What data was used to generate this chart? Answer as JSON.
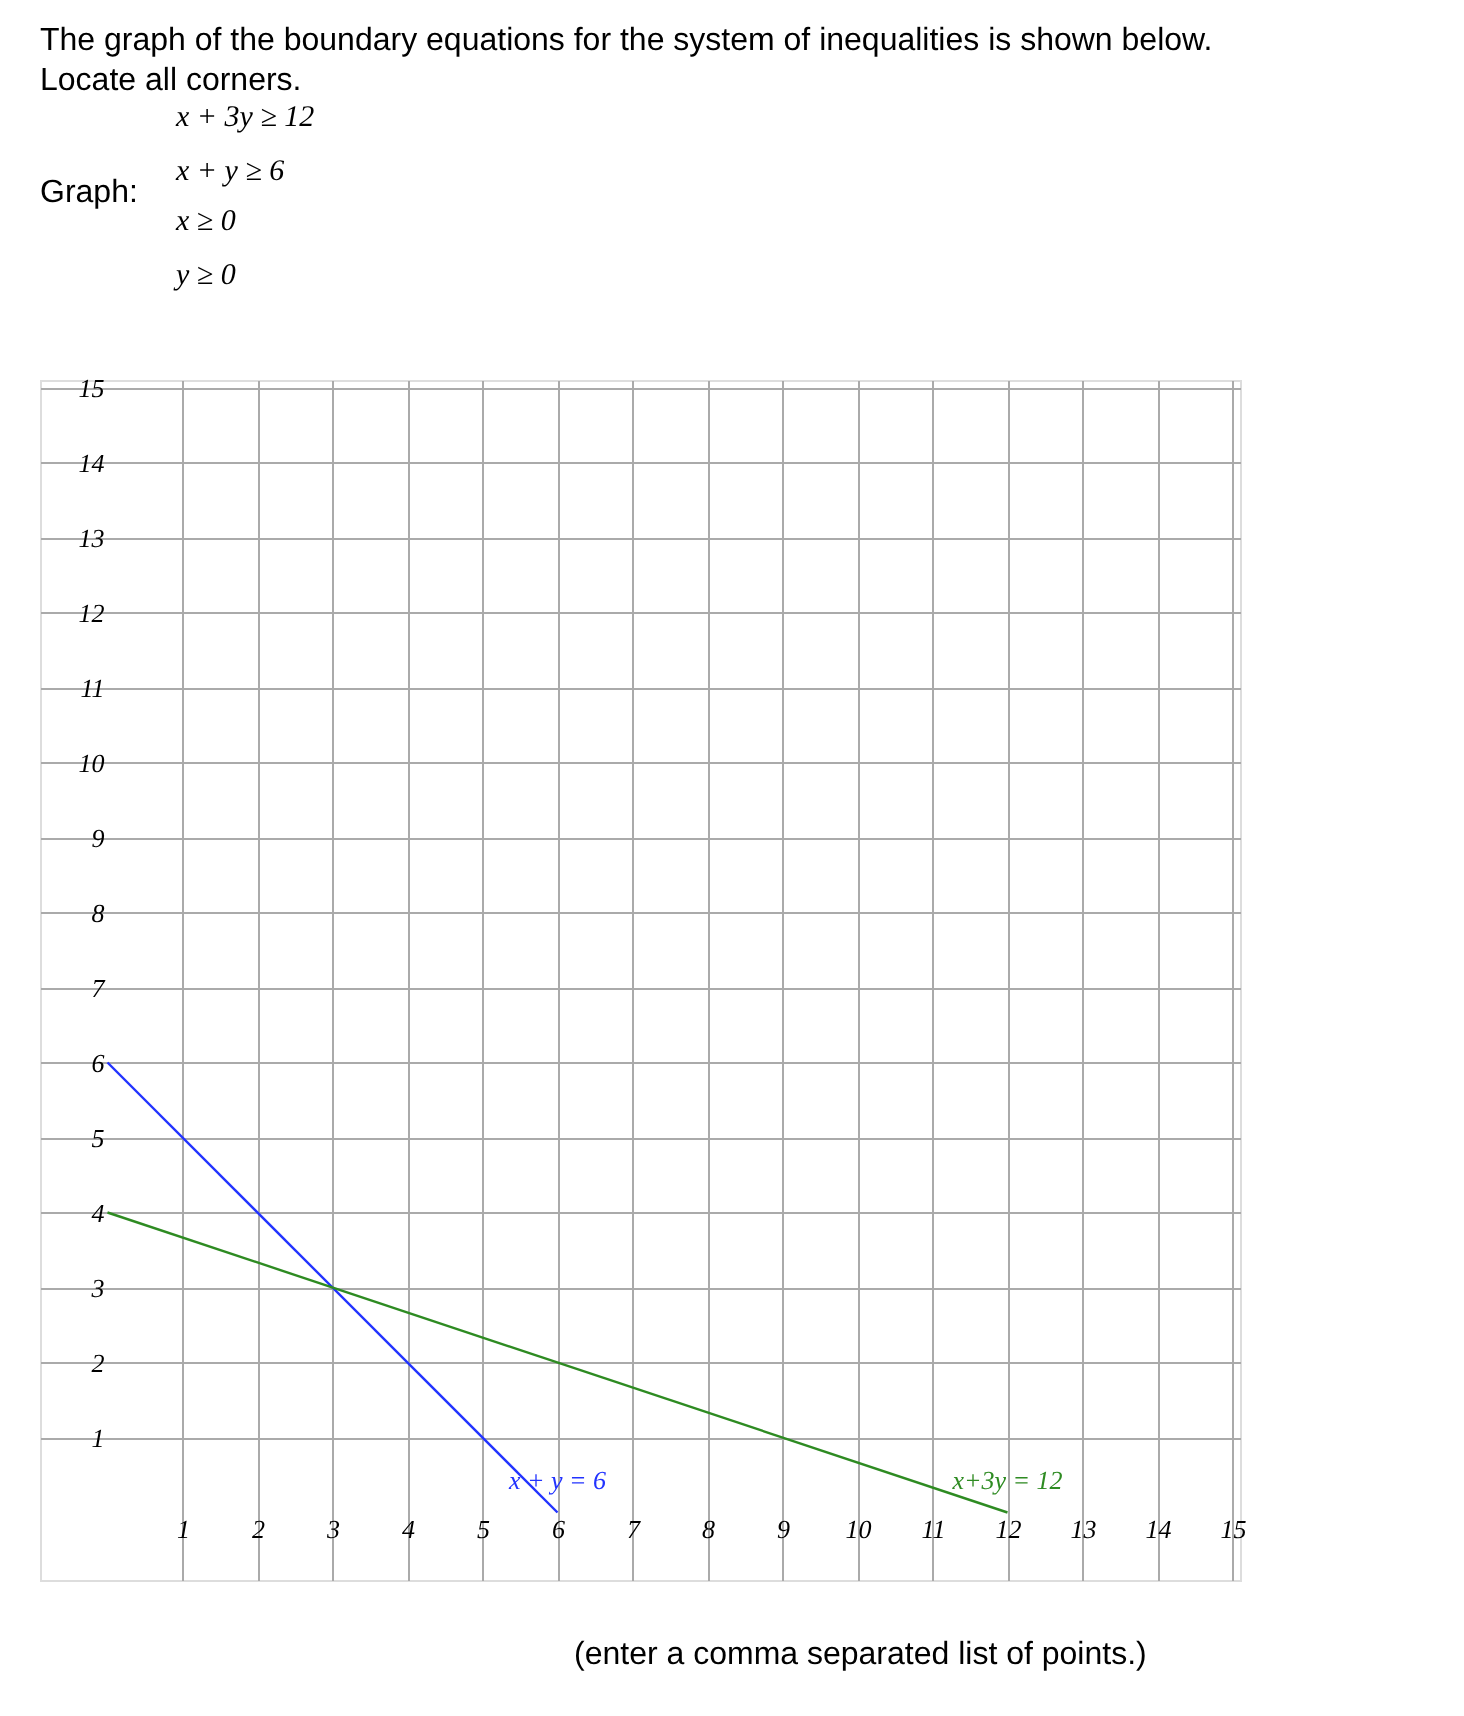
{
  "chart_data": {
    "type": "line",
    "title": "The graph of the boundary equations for the system of inequalities is shown below.",
    "subtitle": "Locate all corners.",
    "annotations": [
      "Graph:",
      "x + 3y ≥ 12",
      "x + y ≥ 6",
      "x ≥ 0",
      "y ≥ 0",
      "(enter a comma separated list of points.)"
    ],
    "series": [
      {
        "name": "x + y = 6",
        "color": "#2233ff",
        "x": [
          0,
          6
        ],
        "values": [
          6,
          0
        ]
      },
      {
        "name": "x+3y = 12",
        "color": "#2e8b22",
        "x": [
          0,
          12
        ],
        "values": [
          4,
          0
        ]
      }
    ],
    "xlim": [
      -0.9,
      15.1
    ],
    "ylim": [
      -0.9,
      15.1
    ],
    "xticks": [
      1,
      2,
      3,
      4,
      5,
      6,
      7,
      8,
      9,
      10,
      11,
      12,
      13,
      14,
      15
    ],
    "yticks": [
      1,
      2,
      3,
      4,
      5,
      6,
      7,
      8,
      9,
      10,
      11,
      12,
      13,
      14,
      15
    ],
    "grid": true,
    "marker": "none",
    "line_style": "solid"
  }
}
